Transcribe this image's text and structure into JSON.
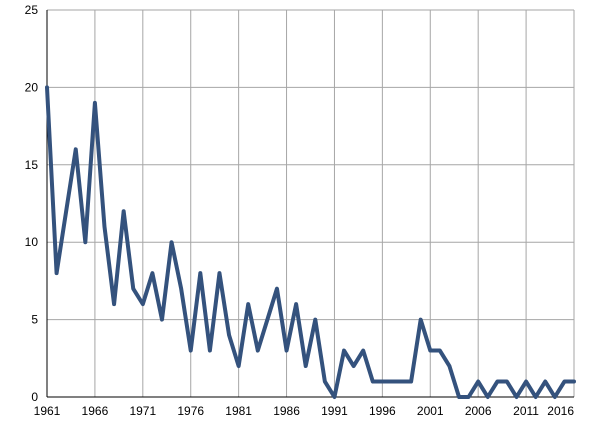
{
  "chart_data": {
    "type": "line",
    "title": "",
    "xlabel": "",
    "ylabel": "",
    "xlim": [
      1961,
      2016
    ],
    "ylim": [
      0,
      25
    ],
    "x_ticks": [
      1961,
      1966,
      1971,
      1976,
      1981,
      1986,
      1991,
      1996,
      2001,
      2006,
      2011,
      2016
    ],
    "y_ticks": [
      0,
      5,
      10,
      15,
      20,
      25
    ],
    "grid": true,
    "legend": "none",
    "series_color": "#34527d",
    "series": [
      {
        "x": [
          1961,
          1962,
          1963,
          1964,
          1965,
          1966,
          1967,
          1968,
          1969,
          1970,
          1971,
          1972,
          1973,
          1974,
          1975,
          1976,
          1977,
          1978,
          1979,
          1980,
          1981,
          1982,
          1983,
          1984,
          1985,
          1986,
          1987,
          1988,
          1989,
          1990,
          1991,
          1992,
          1993,
          1994,
          1995,
          1996,
          1997,
          1998,
          1999,
          2000,
          2001,
          2002,
          2003,
          2004,
          2005,
          2006,
          2007,
          2008,
          2009,
          2010,
          2011,
          2012,
          2013,
          2014,
          2015,
          2016
        ],
        "y": [
          20,
          8,
          12,
          16,
          10,
          19,
          11,
          6,
          12,
          7,
          6,
          8,
          5,
          10,
          7,
          3,
          8,
          3,
          8,
          4,
          2,
          6,
          3,
          5,
          7,
          3,
          6,
          2,
          5,
          1,
          0,
          3,
          2,
          3,
          1,
          1,
          1,
          1,
          1,
          5,
          3,
          3,
          2,
          0,
          0,
          1,
          0,
          1,
          1,
          0,
          1,
          0,
          1,
          0,
          1,
          1
        ]
      }
    ]
  }
}
